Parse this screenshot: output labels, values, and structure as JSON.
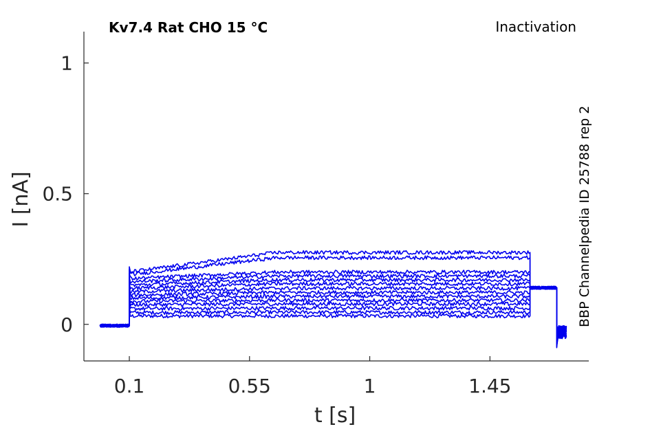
{
  "chart_data": {
    "type": "line",
    "title_left": "Kv7.4  Rat  CHO  15 °C",
    "title_right": "Inactivation",
    "side_note": "BBP Channelpedia ID 25788 rep 2",
    "xlabel": "t [s]",
    "ylabel": "I [nA]",
    "xlim": [
      -0.07,
      1.82
    ],
    "ylim": [
      -0.14,
      1.12
    ],
    "xticks": [
      0.1,
      0.55,
      1,
      1.45
    ],
    "xtick_labels": [
      "0.1",
      "0.55",
      "1",
      "1.45"
    ],
    "yticks": [
      0,
      0.5,
      1
    ],
    "ytick_labels": [
      "0",
      "0.5",
      "1"
    ],
    "grid": false,
    "line_color": "#0000ee",
    "sweep_count": 14,
    "protocol": {
      "baseline_start": -0.01,
      "step_on": 0.1,
      "step_off": 1.6,
      "tail_end": 1.7,
      "end": 1.74,
      "baseline_current": -0.005,
      "tail_current": 0.14
    },
    "sweeps": [
      {
        "initial": 0.032,
        "steady": 0.032
      },
      {
        "initial": 0.045,
        "steady": 0.046
      },
      {
        "initial": 0.06,
        "steady": 0.062
      },
      {
        "initial": 0.075,
        "steady": 0.078
      },
      {
        "initial": 0.088,
        "steady": 0.092
      },
      {
        "initial": 0.1,
        "steady": 0.107
      },
      {
        "initial": 0.112,
        "steady": 0.122
      },
      {
        "initial": 0.125,
        "steady": 0.138
      },
      {
        "initial": 0.138,
        "steady": 0.155
      },
      {
        "initial": 0.15,
        "steady": 0.17
      },
      {
        "initial": 0.163,
        "steady": 0.185
      },
      {
        "initial": 0.175,
        "steady": 0.2
      },
      {
        "initial": 0.19,
        "steady": 0.255
      },
      {
        "initial": 0.2,
        "steady": 0.275
      }
    ]
  }
}
